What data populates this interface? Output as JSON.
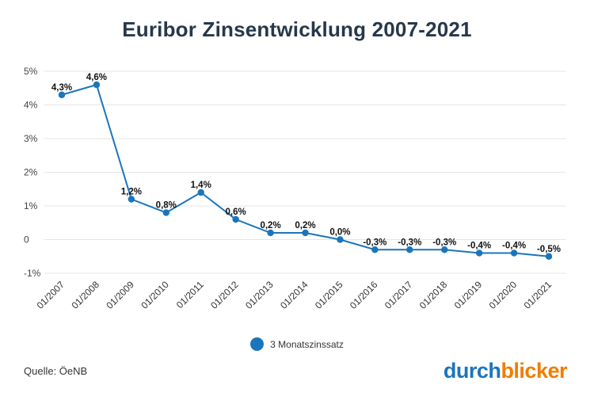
{
  "chart_data": {
    "type": "line",
    "title": "Euribor Zinsentwicklung 2007-2021",
    "categories": [
      "01/2007",
      "01/2008",
      "01/2009",
      "01/2010",
      "01/2011",
      "01/2012",
      "01/2013",
      "01/2014",
      "01/2015",
      "01/2016",
      "01/2017",
      "01/2018",
      "01/2019",
      "01/2020",
      "01/2021"
    ],
    "series": [
      {
        "name": "3 Monatszinssatz",
        "values": [
          4.3,
          4.6,
          1.2,
          0.8,
          1.4,
          0.6,
          0.2,
          0.2,
          0.0,
          -0.3,
          -0.3,
          -0.3,
          -0.4,
          -0.4,
          -0.5
        ],
        "labels": [
          "4,3%",
          "4,6%",
          "1,2%",
          "0,8%",
          "1,4%",
          "0,6%",
          "0,2%",
          "0,2%",
          "0,0%",
          "-0,3%",
          "-0,3%",
          "-0,3%",
          "-0,4%",
          "-0,4%",
          "-0,5%"
        ],
        "color": "#1b75bc"
      }
    ],
    "ylim": [
      -1,
      5
    ],
    "yticks": [
      5,
      4,
      3,
      2,
      1,
      0,
      -1
    ],
    "ytick_labels": [
      "5%",
      "4%",
      "3%",
      "2%",
      "1%",
      "0",
      "-1%"
    ],
    "xlabel": "",
    "ylabel": "",
    "grid": true,
    "legend_position": "bottom"
  },
  "source_text": "Quelle: ÖeNB",
  "logo": {
    "part1": "durch",
    "part2": "blicker",
    "color1": "#1b75bc",
    "color2": "#f07d00"
  }
}
